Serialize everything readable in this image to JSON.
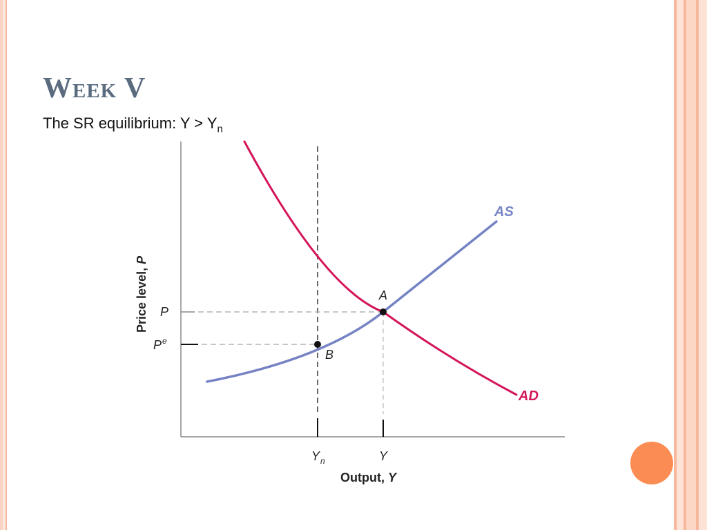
{
  "slide": {
    "title": "Week V",
    "subtitle_main": "The SR equilibrium: Y > Y",
    "subtitle_sub": "n"
  },
  "diagram": {
    "y_axis_label_main": "Price level, ",
    "y_axis_label_var": "P",
    "x_axis_label_main": "Output, ",
    "x_axis_label_var": "Y",
    "tick_P": "P",
    "tick_Pe_main": "P",
    "tick_Pe_sup": "e",
    "tick_Yn_main": "Y",
    "tick_Yn_sub": "n",
    "tick_Y": "Y",
    "curve_AS_label": "AS",
    "curve_AD_label": "AD",
    "point_A_label": "A",
    "point_B_label": "B"
  },
  "colors": {
    "AS": "#7583c4",
    "AD": "#d4145a",
    "accent_circle": "#fb8d54",
    "border_light": "#fcdccc",
    "border_mid": "#f8b9a0",
    "title": "#5a6b80"
  }
}
